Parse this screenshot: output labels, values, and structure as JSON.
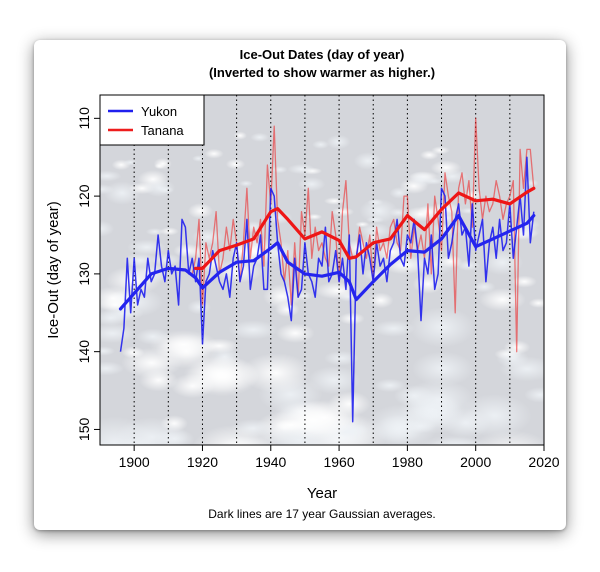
{
  "chart_data": {
    "type": "line",
    "title": "Ice-Out Dates (day of year)",
    "subtitle": "(Inverted to show warmer as higher.)",
    "xlabel": "Year",
    "ylabel": "Ice-Out (day of year)",
    "caption": "Dark lines are 17 year Gaussian averages.",
    "xlim": [
      1890,
      2020
    ],
    "ylim": [
      152,
      107
    ],
    "y_inverted": true,
    "xticks": [
      1900,
      1920,
      1940,
      1960,
      1980,
      2000,
      2020
    ],
    "yticks": [
      110,
      120,
      130,
      140,
      150
    ],
    "vertical_gridlines": [
      1900,
      1910,
      1920,
      1930,
      1940,
      1950,
      1960,
      1970,
      1980,
      1990,
      2000,
      2010
    ],
    "legend": {
      "placement": "top-left",
      "entries": [
        {
          "label": "Yukon",
          "color": "#2020ee"
        },
        {
          "label": "Tanana",
          "color": "#ee1c1c"
        }
      ]
    },
    "series": [
      {
        "name": "Yukon",
        "color": "#2020ee",
        "kind": "raw",
        "x": [
          1896,
          1897,
          1898,
          1899,
          1900,
          1901,
          1902,
          1903,
          1904,
          1905,
          1906,
          1907,
          1908,
          1909,
          1910,
          1911,
          1912,
          1913,
          1914,
          1915,
          1916,
          1917,
          1918,
          1919,
          1920,
          1921,
          1922,
          1923,
          1924,
          1925,
          1926,
          1927,
          1928,
          1929,
          1930,
          1931,
          1932,
          1933,
          1934,
          1935,
          1936,
          1937,
          1938,
          1939,
          1940,
          1941,
          1942,
          1943,
          1944,
          1945,
          1946,
          1947,
          1948,
          1949,
          1950,
          1951,
          1952,
          1953,
          1954,
          1955,
          1956,
          1957,
          1958,
          1959,
          1960,
          1961,
          1962,
          1963,
          1964,
          1965,
          1966,
          1967,
          1968,
          1969,
          1970,
          1971,
          1972,
          1973,
          1974,
          1975,
          1976,
          1977,
          1978,
          1979,
          1980,
          1981,
          1982,
          1983,
          1984,
          1985,
          1986,
          1987,
          1988,
          1989,
          1990,
          1991,
          1992,
          1993,
          1994,
          1995,
          1996,
          1997,
          1998,
          1999,
          2000,
          2001,
          2002,
          2003,
          2004,
          2005,
          2006,
          2007,
          2008,
          2009,
          2010,
          2011,
          2012,
          2013,
          2014,
          2015,
          2016,
          2017
        ],
        "values": [
          140,
          137,
          128,
          135,
          128,
          134,
          132,
          133,
          128,
          131,
          130,
          125,
          129,
          131,
          127,
          130,
          129,
          134,
          123,
          124,
          130,
          128,
          131,
          128,
          139,
          131,
          130,
          127,
          129,
          131,
          132,
          130,
          133,
          128,
          126,
          131,
          129,
          123,
          132,
          129,
          128,
          125,
          132,
          132,
          119,
          120,
          126,
          130,
          131,
          133,
          136,
          128,
          133,
          132,
          126,
          130,
          131,
          133,
          128,
          129,
          124,
          131,
          130,
          127,
          131,
          128,
          132,
          125,
          149,
          128,
          125,
          130,
          126,
          128,
          131,
          126,
          129,
          128,
          131,
          127,
          126,
          123,
          128,
          129,
          125,
          126,
          123,
          127,
          136,
          128,
          130,
          125,
          132,
          130,
          119,
          120,
          128,
          126,
          123,
          121,
          125,
          124,
          129,
          121,
          127,
          125,
          123,
          131,
          126,
          124,
          128,
          123,
          127,
          126,
          121,
          128,
          124,
          120,
          125,
          115,
          126,
          122
        ]
      },
      {
        "name": "Tanana",
        "color": "#ee1c1c",
        "kind": "raw",
        "x": [
          1917,
          1918,
          1919,
          1920,
          1921,
          1922,
          1923,
          1924,
          1925,
          1926,
          1927,
          1928,
          1929,
          1930,
          1931,
          1932,
          1933,
          1934,
          1935,
          1936,
          1937,
          1938,
          1939,
          1940,
          1941,
          1942,
          1943,
          1944,
          1945,
          1946,
          1947,
          1948,
          1949,
          1950,
          1951,
          1952,
          1953,
          1954,
          1955,
          1956,
          1957,
          1958,
          1959,
          1960,
          1961,
          1962,
          1963,
          1964,
          1965,
          1966,
          1967,
          1968,
          1969,
          1970,
          1971,
          1972,
          1973,
          1974,
          1975,
          1976,
          1977,
          1978,
          1979,
          1980,
          1981,
          1982,
          1983,
          1984,
          1985,
          1986,
          1987,
          1988,
          1989,
          1990,
          1991,
          1992,
          1993,
          1994,
          1995,
          1996,
          1997,
          1998,
          1999,
          2000,
          2001,
          2002,
          2003,
          2004,
          2005,
          2006,
          2007,
          2008,
          2009,
          2010,
          2011,
          2012,
          2013,
          2014,
          2015,
          2016,
          2017
        ],
        "values": [
          130,
          128,
          123,
          134,
          126,
          128,
          126,
          122,
          130,
          128,
          124,
          127,
          123,
          126,
          131,
          126,
          119,
          128,
          124,
          126,
          123,
          129,
          116,
          121,
          111,
          123,
          126,
          131,
          127,
          134,
          126,
          133,
          122,
          125,
          119,
          128,
          124,
          127,
          126,
          128,
          129,
          122,
          125,
          131,
          122,
          118,
          126,
          128,
          128,
          124,
          126,
          128,
          125,
          131,
          124,
          127,
          126,
          128,
          124,
          123,
          126,
          127,
          120,
          120,
          128,
          124,
          127,
          125,
          128,
          121,
          130,
          120,
          123,
          127,
          117,
          120,
          122,
          135,
          119,
          117,
          121,
          118,
          124,
          110,
          119,
          123,
          120,
          122,
          121,
          118,
          120,
          123,
          121,
          120,
          118,
          140,
          114,
          119,
          114,
          114,
          119
        ]
      },
      {
        "name": "Yukon",
        "color": "#2424ee",
        "kind": "gaussian-17yr",
        "x": [
          1896,
          1900,
          1905,
          1910,
          1915,
          1918,
          1920,
          1925,
          1930,
          1935,
          1940,
          1942,
          1945,
          1950,
          1955,
          1960,
          1963,
          1965,
          1970,
          1975,
          1980,
          1985,
          1990,
          1995,
          2000,
          2005,
          2010,
          2015,
          2017
        ],
        "values": [
          134.5,
          132.5,
          130,
          129.3,
          129.5,
          130.5,
          131.8,
          129.8,
          128.5,
          128.3,
          126.7,
          126,
          128.5,
          130,
          130.3,
          129.8,
          131,
          133.3,
          131,
          128.8,
          127,
          127.2,
          125.5,
          122.5,
          126.5,
          125.5,
          124.5,
          123.5,
          122.5
        ]
      },
      {
        "name": "Tanana",
        "color": "#ee1616",
        "kind": "gaussian-17yr",
        "x": [
          1918,
          1920,
          1925,
          1930,
          1935,
          1940,
          1942,
          1945,
          1950,
          1955,
          1960,
          1963,
          1965,
          1970,
          1975,
          1980,
          1985,
          1990,
          1995,
          2000,
          2005,
          2010,
          2015,
          2017
        ],
        "values": [
          129.3,
          129.3,
          127,
          126.3,
          125.5,
          122,
          121.6,
          123,
          125.5,
          124.6,
          125.7,
          128,
          127.8,
          126,
          125.5,
          122.5,
          124.3,
          121.7,
          119.6,
          120.6,
          120.4,
          121,
          119.5,
          119
        ]
      }
    ]
  }
}
